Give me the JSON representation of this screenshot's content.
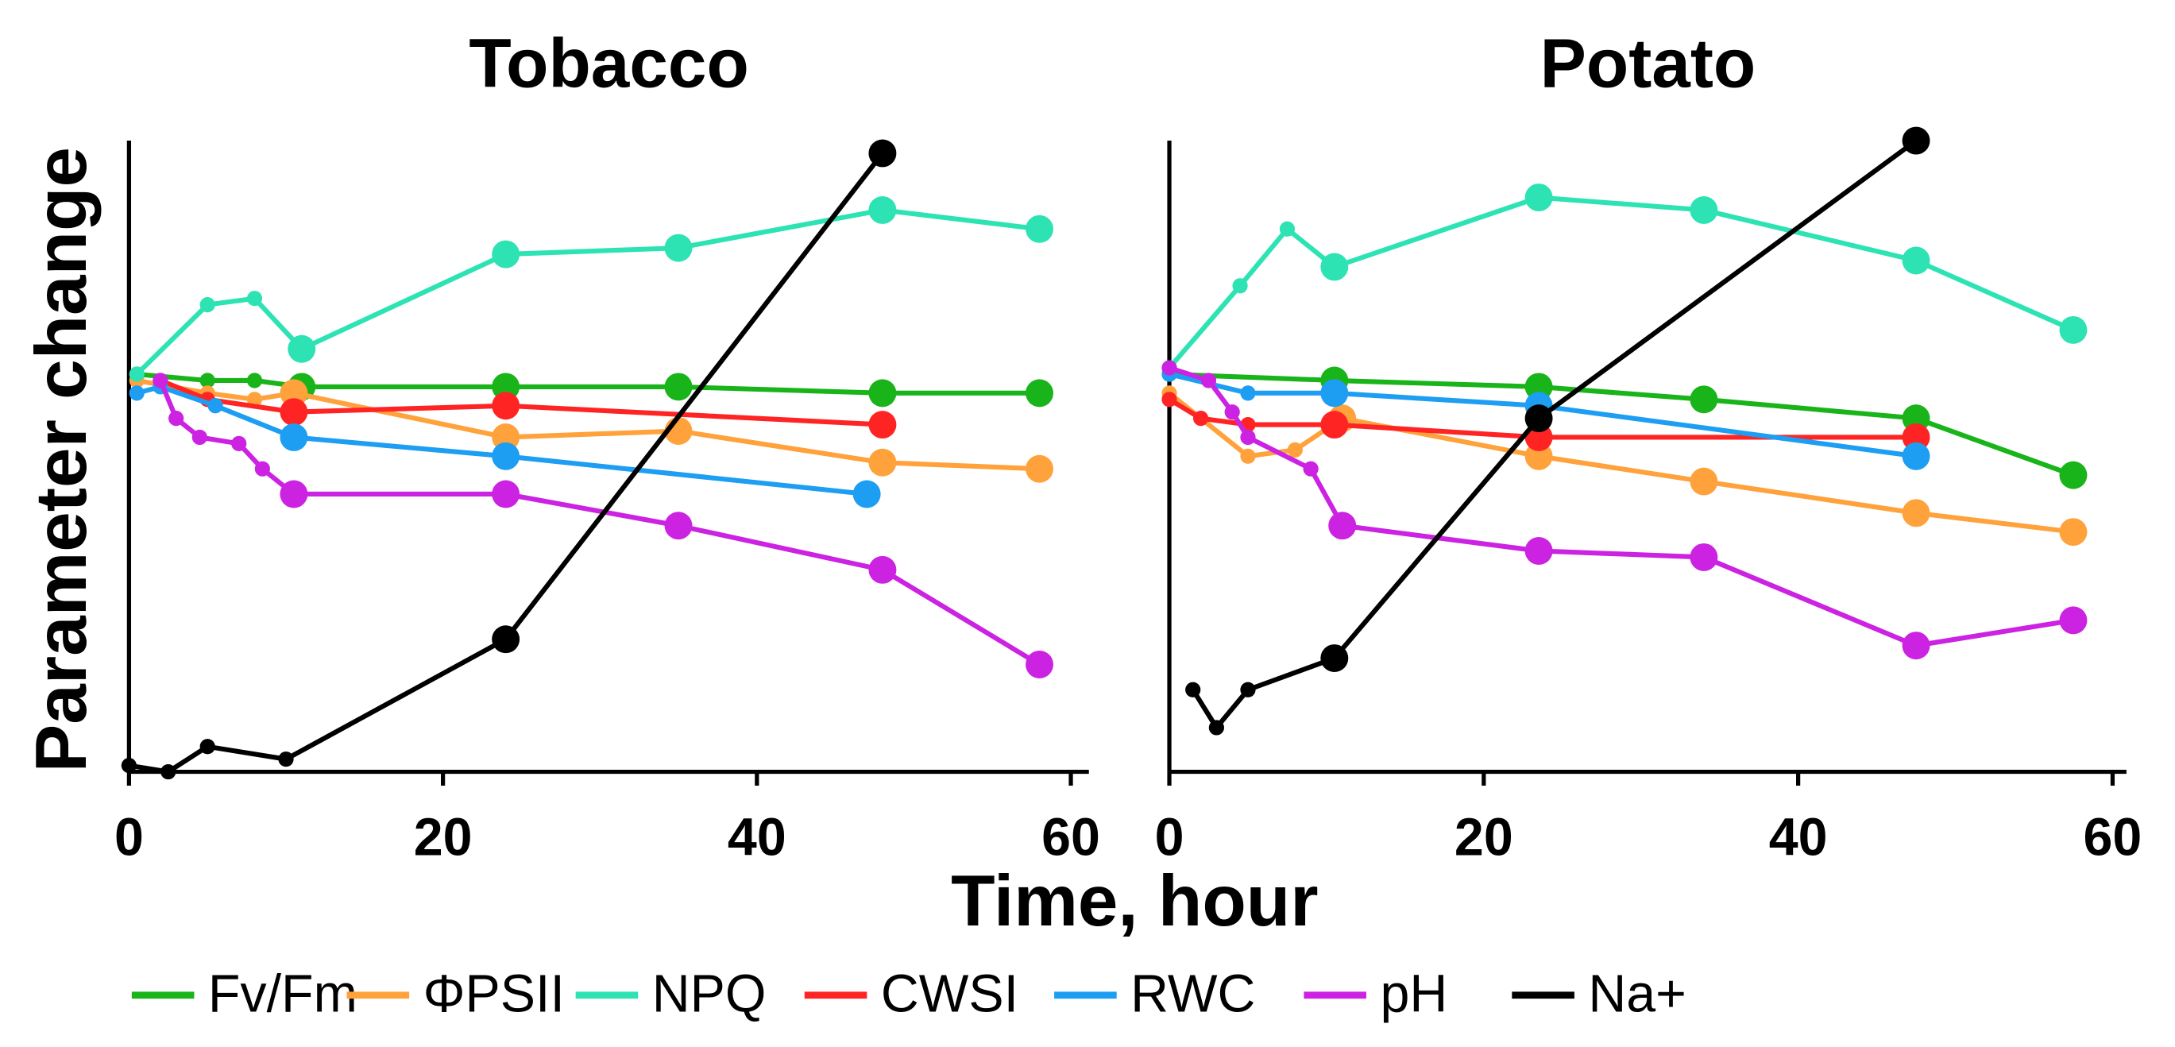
{
  "x_label": "Time, hour",
  "y_label": "Parameter change",
  "chart_data": [
    {
      "type": "line",
      "title": "Tobacco",
      "xlim": [
        0,
        60
      ],
      "xticks": [
        0,
        20,
        40,
        60
      ],
      "ylim": [
        0,
        100
      ],
      "series": [
        {
          "name": "Fv/Fm",
          "color": "#19b419",
          "x": [
            0.5,
            5,
            8,
            11,
            24,
            35,
            48,
            58
          ],
          "values": [
            63,
            62,
            62,
            61,
            61,
            61,
            60,
            60
          ]
        },
        {
          "name": "ΦPSII",
          "color": "#ffa23c",
          "x": [
            0.5,
            5,
            8,
            10.5,
            24,
            35,
            48,
            58
          ],
          "values": [
            62,
            60,
            59,
            60,
            53,
            54,
            49,
            48
          ]
        },
        {
          "name": "NPQ",
          "color": "#2de3b4",
          "x": [
            0.5,
            5,
            8,
            11,
            24,
            35,
            48,
            58
          ],
          "values": [
            63,
            74,
            75,
            67,
            82,
            83,
            89,
            86
          ]
        },
        {
          "name": "CWSI",
          "color": "#ff2424",
          "x": [
            2,
            5,
            10.5,
            24,
            48
          ],
          "values": [
            62,
            59,
            57,
            58,
            55
          ]
        },
        {
          "name": "RWC",
          "color": "#1e9ef2",
          "x": [
            0.5,
            2,
            5.5,
            10.5,
            24,
            47
          ],
          "values": [
            60,
            61,
            58,
            53,
            50,
            44
          ]
        },
        {
          "name": "pH",
          "color": "#cc22e2",
          "x": [
            2,
            3,
            4.5,
            7,
            8.5,
            10.5,
            24,
            35,
            48,
            58
          ],
          "values": [
            62,
            56,
            53,
            52,
            48,
            44,
            44,
            39,
            32,
            17
          ]
        },
        {
          "name": "Na+",
          "color": "#000000",
          "x": [
            0,
            2.5,
            5,
            10,
            24,
            48
          ],
          "values": [
            1,
            0,
            4,
            2,
            21,
            98
          ]
        }
      ]
    },
    {
      "type": "line",
      "title": "Potato",
      "xlim": [
        0,
        60
      ],
      "xticks": [
        0,
        20,
        40,
        60
      ],
      "ylim": [
        0,
        100
      ],
      "series": [
        {
          "name": "Fv/Fm",
          "color": "#19b419",
          "x": [
            0,
            10.5,
            23.5,
            34,
            47.5,
            57.5
          ],
          "values": [
            63,
            62,
            61,
            59,
            56,
            47
          ]
        },
        {
          "name": "ΦPSII",
          "color": "#ffa23c",
          "x": [
            0,
            5,
            8,
            11,
            23.5,
            34,
            47.5,
            57.5
          ],
          "values": [
            60,
            50,
            51,
            56,
            50,
            46,
            41,
            38
          ]
        },
        {
          "name": "NPQ",
          "color": "#2de3b4",
          "x": [
            0,
            4.5,
            7.5,
            10.5,
            23.5,
            34,
            47.5,
            57.5
          ],
          "values": [
            64,
            77,
            86,
            80,
            91,
            89,
            81,
            70
          ]
        },
        {
          "name": "CWSI",
          "color": "#ff2424",
          "x": [
            0,
            2,
            5,
            10.5,
            23.5,
            47.5
          ],
          "values": [
            59,
            56,
            55,
            55,
            53,
            53
          ]
        },
        {
          "name": "RWC",
          "color": "#1e9ef2",
          "x": [
            0,
            5,
            10.5,
            23.5,
            47.5
          ],
          "values": [
            63,
            60,
            60,
            58,
            50
          ]
        },
        {
          "name": "pH",
          "color": "#cc22e2",
          "x": [
            0,
            2.5,
            4,
            5,
            9,
            11,
            23.5,
            34,
            47.5,
            57.5
          ],
          "values": [
            64,
            62,
            57,
            53,
            48,
            39,
            35,
            34,
            20,
            24
          ]
        },
        {
          "name": "Na+",
          "color": "#000000",
          "x": [
            1.5,
            3,
            5,
            10.5,
            23.5,
            47.5
          ],
          "values": [
            13,
            7,
            13,
            18,
            56,
            100
          ]
        }
      ]
    }
  ]
}
